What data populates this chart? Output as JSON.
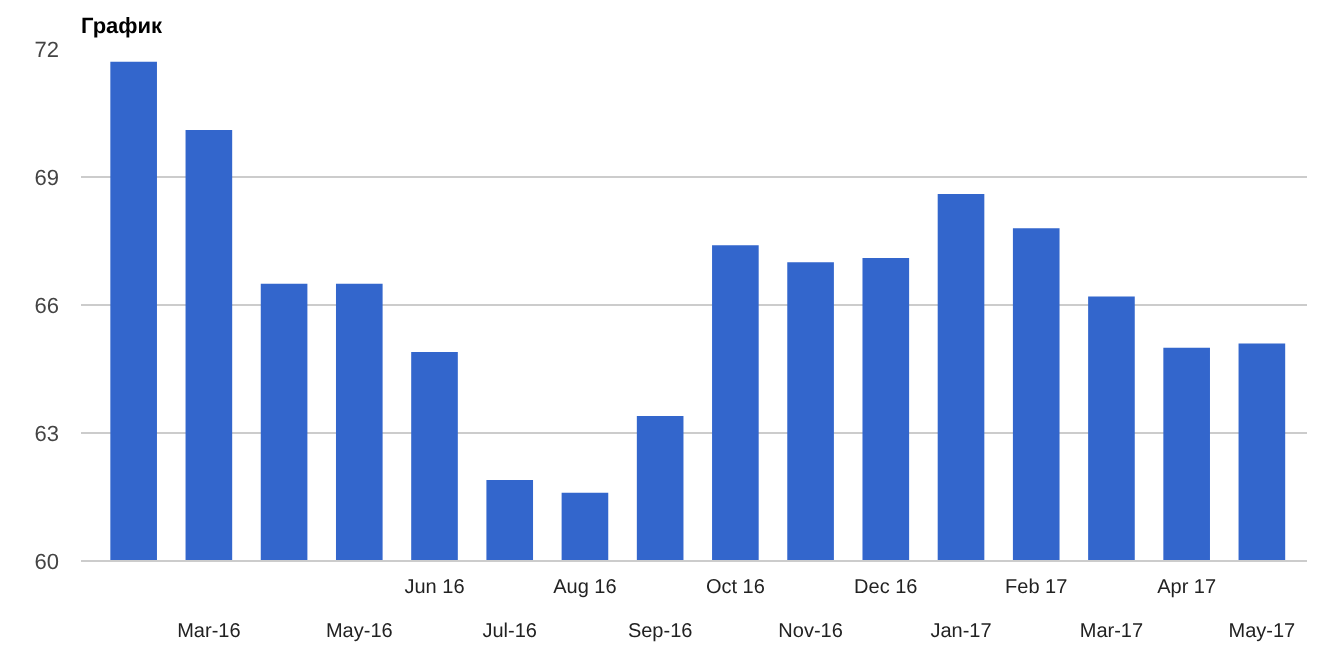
{
  "chart_data": {
    "type": "bar",
    "title": "График",
    "categories": [
      null,
      "Mar-16",
      null,
      "May-16",
      "Jun 16",
      "Jul-16",
      "Aug 16",
      "Sep-16",
      "Oct 16",
      "Nov-16",
      "Dec 16",
      "Jan-17",
      "Feb 17",
      "Mar-17",
      "Apr 17",
      "May-17"
    ],
    "values": [
      71.7,
      70.1,
      66.5,
      66.5,
      64.9,
      61.9,
      61.6,
      63.4,
      67.4,
      67.0,
      67.1,
      68.6,
      67.8,
      66.2,
      65.0,
      65.1
    ],
    "color": "#3366cc",
    "ylim": [
      60,
      72
    ],
    "yticks": [
      60,
      63,
      66,
      69,
      72
    ],
    "grid": "y"
  }
}
